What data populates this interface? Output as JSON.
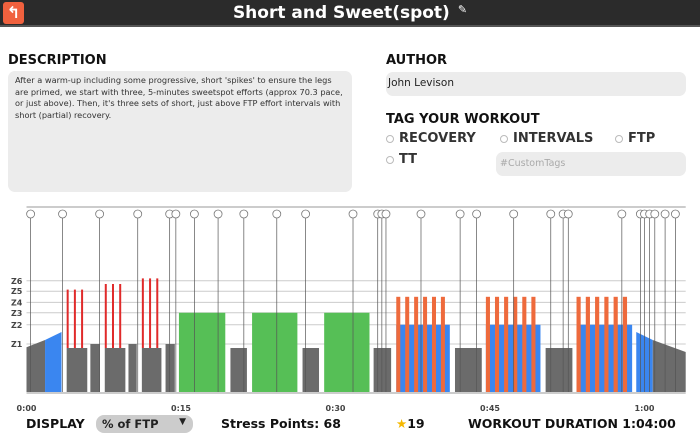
{
  "header": {
    "title": "Short and Sweet(spot)",
    "back_icon": "back-arrow-icon",
    "edit_icon": "edit-icon"
  },
  "description": {
    "label": "DESCRIPTION",
    "text": "After a warm-up including some progressive, short 'spikes' to ensure the legs are primed, we start with three, 5-minutes sweetspot efforts (approx 70.3 pace, or just above). Then, it's three sets of short, just above FTP effort intervals with short (partial) recovery."
  },
  "author": {
    "label": "AUTHOR",
    "value": "John Levison"
  },
  "tags": {
    "label": "TAG YOUR WORKOUT",
    "options": [
      "RECOVERY",
      "INTERVALS",
      "FTP",
      "TT"
    ],
    "custom_placeholder": "#CustomTags"
  },
  "footer": {
    "display_label": "DISPLAY",
    "display_value": "% of FTP",
    "stress_points": "Stress Points: 68",
    "stars": "19",
    "duration": "WORKOUT DURATION 1:04:00"
  },
  "colors": {
    "recovery": "#6b6b6b",
    "endurance": "#3a86f0",
    "sweetspot": "#56bf56",
    "threshold": "#ee6a3c",
    "vo2": "#e02a2a",
    "header": "#2b2b2b",
    "accent": "#f0613e"
  },
  "chart_data": {
    "type": "area",
    "x_unit": "minutes",
    "y_unit": "% of FTP",
    "xlim": [
      0,
      64
    ],
    "x_ticks": [
      {
        "t": 0,
        "label": "0:00"
      },
      {
        "t": 15,
        "label": "0:15"
      },
      {
        "t": 30,
        "label": "0:30"
      },
      {
        "t": 45,
        "label": "0:45"
      },
      {
        "t": 60,
        "label": "1:00"
      }
    ],
    "zones": [
      {
        "label": "Z1",
        "pct": 60
      },
      {
        "label": "Z2",
        "pct": 84
      },
      {
        "label": "Z3",
        "pct": 99
      },
      {
        "label": "Z4",
        "pct": 112
      },
      {
        "label": "Z5",
        "pct": 126
      },
      {
        "label": "Z6",
        "pct": 139
      }
    ],
    "segments": [
      {
        "s": 0,
        "e": 1.8,
        "p0": 56,
        "p1": 65,
        "c": "recovery"
      },
      {
        "s": 1.8,
        "e": 3.4,
        "p0": 65,
        "p1": 75,
        "c": "endurance"
      },
      {
        "s": 3.9,
        "e": 5.9,
        "p0": 55,
        "p1": 55,
        "c": "recovery",
        "spikes": [
          3.9,
          4.6,
          5.3
        ],
        "spike_pct": 128
      },
      {
        "s": 6.2,
        "e": 7.1,
        "p0": 60,
        "p1": 60,
        "c": "recovery"
      },
      {
        "s": 7.6,
        "e": 9.6,
        "p0": 55,
        "p1": 55,
        "c": "recovery",
        "spikes": [
          7.6,
          8.3,
          9.0
        ],
        "spike_pct": 135
      },
      {
        "s": 9.9,
        "e": 10.7,
        "p0": 60,
        "p1": 60,
        "c": "recovery"
      },
      {
        "s": 11.2,
        "e": 13.1,
        "p0": 55,
        "p1": 55,
        "c": "recovery",
        "spikes": [
          11.2,
          11.9,
          12.6
        ],
        "spike_pct": 142
      },
      {
        "s": 13.5,
        "e": 14.4,
        "p0": 60,
        "p1": 60,
        "c": "recovery"
      },
      {
        "s": 14.8,
        "e": 19.3,
        "p0": 99,
        "p1": 99,
        "c": "sweetspot"
      },
      {
        "s": 19.8,
        "e": 21.4,
        "p0": 55,
        "p1": 55,
        "c": "recovery"
      },
      {
        "s": 21.9,
        "e": 26.3,
        "p0": 99,
        "p1": 99,
        "c": "sweetspot"
      },
      {
        "s": 26.8,
        "e": 28.4,
        "p0": 55,
        "p1": 55,
        "c": "recovery"
      },
      {
        "s": 28.9,
        "e": 33.3,
        "p0": 99,
        "p1": 99,
        "c": "sweetspot"
      },
      {
        "s": 33.7,
        "e": 35.4,
        "p0": 55,
        "p1": 55,
        "c": "recovery"
      },
      {
        "s": 35.9,
        "e": 41.1,
        "p0": 84,
        "p1": 84,
        "c": "endurance",
        "on_reps": 6,
        "on_pct": 119
      },
      {
        "s": 41.6,
        "e": 44.2,
        "p0": 55,
        "p1": 55,
        "c": "recovery"
      },
      {
        "s": 44.6,
        "e": 49.9,
        "p0": 84,
        "p1": 84,
        "c": "endurance",
        "on_reps": 6,
        "on_pct": 119
      },
      {
        "s": 50.4,
        "e": 53.0,
        "p0": 55,
        "p1": 55,
        "c": "recovery"
      },
      {
        "s": 53.4,
        "e": 58.8,
        "p0": 84,
        "p1": 84,
        "c": "endurance",
        "on_reps": 6,
        "on_pct": 119
      },
      {
        "s": 59.2,
        "e": 60.8,
        "p0": 75,
        "p1": 65,
        "c": "endurance"
      },
      {
        "s": 60.8,
        "e": 64,
        "p0": 65,
        "p1": 50,
        "c": "recovery"
      }
    ],
    "markers": [
      0.4,
      3.5,
      7.1,
      10.8,
      13.9,
      14.5,
      16.3,
      18.6,
      21.1,
      24.3,
      27.1,
      31.7,
      34.1,
      34.5,
      34.9,
      38.3,
      42.1,
      43.7,
      47.3,
      50.9,
      52.1,
      52.6,
      57.8,
      59.6,
      60.0,
      60.5,
      61.0,
      62.0,
      63.0
    ]
  }
}
